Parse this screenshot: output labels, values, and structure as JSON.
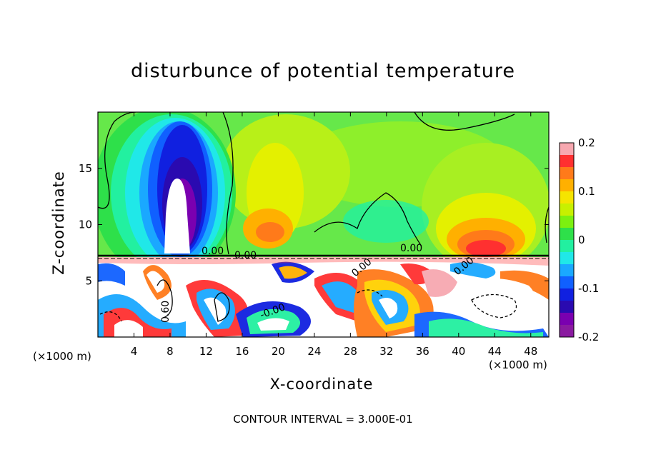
{
  "chart_data": {
    "type": "heatmap",
    "title": "disturbunce of potential temperature",
    "xlabel": "X-coordinate",
    "ylabel": "Z-coordinate",
    "x_unit_label": "(×1000 m)",
    "x_ticks": [
      4,
      8,
      12,
      16,
      20,
      24,
      28,
      32,
      36,
      40,
      44,
      48
    ],
    "y_ticks": [
      5,
      10,
      15
    ],
    "xlim": [
      0,
      50
    ],
    "ylim": [
      0,
      20
    ],
    "colorbar": {
      "ticks": [
        "0.2",
        "0.1",
        "0",
        "-0.1",
        "-0.2"
      ],
      "range": [
        -0.2,
        0.2
      ],
      "colors": [
        "#f7a8b0",
        "#ff3030",
        "#ff7a1a",
        "#ffb000",
        "#f5e400",
        "#c8f000",
        "#7cf010",
        "#2ee04a",
        "#22f0a0",
        "#20e8e8",
        "#1aa8ff",
        "#1060ff",
        "#1020e0",
        "#2a0ab0",
        "#7a00b0",
        "#8a1aa0"
      ]
    },
    "contour_labels": [
      "0.00",
      "0.00",
      "0.00",
      "0.00",
      "-0.00",
      "0.00",
      "0.60"
    ],
    "footer": "CONTOUR INTERVAL = 3.000E-01"
  }
}
